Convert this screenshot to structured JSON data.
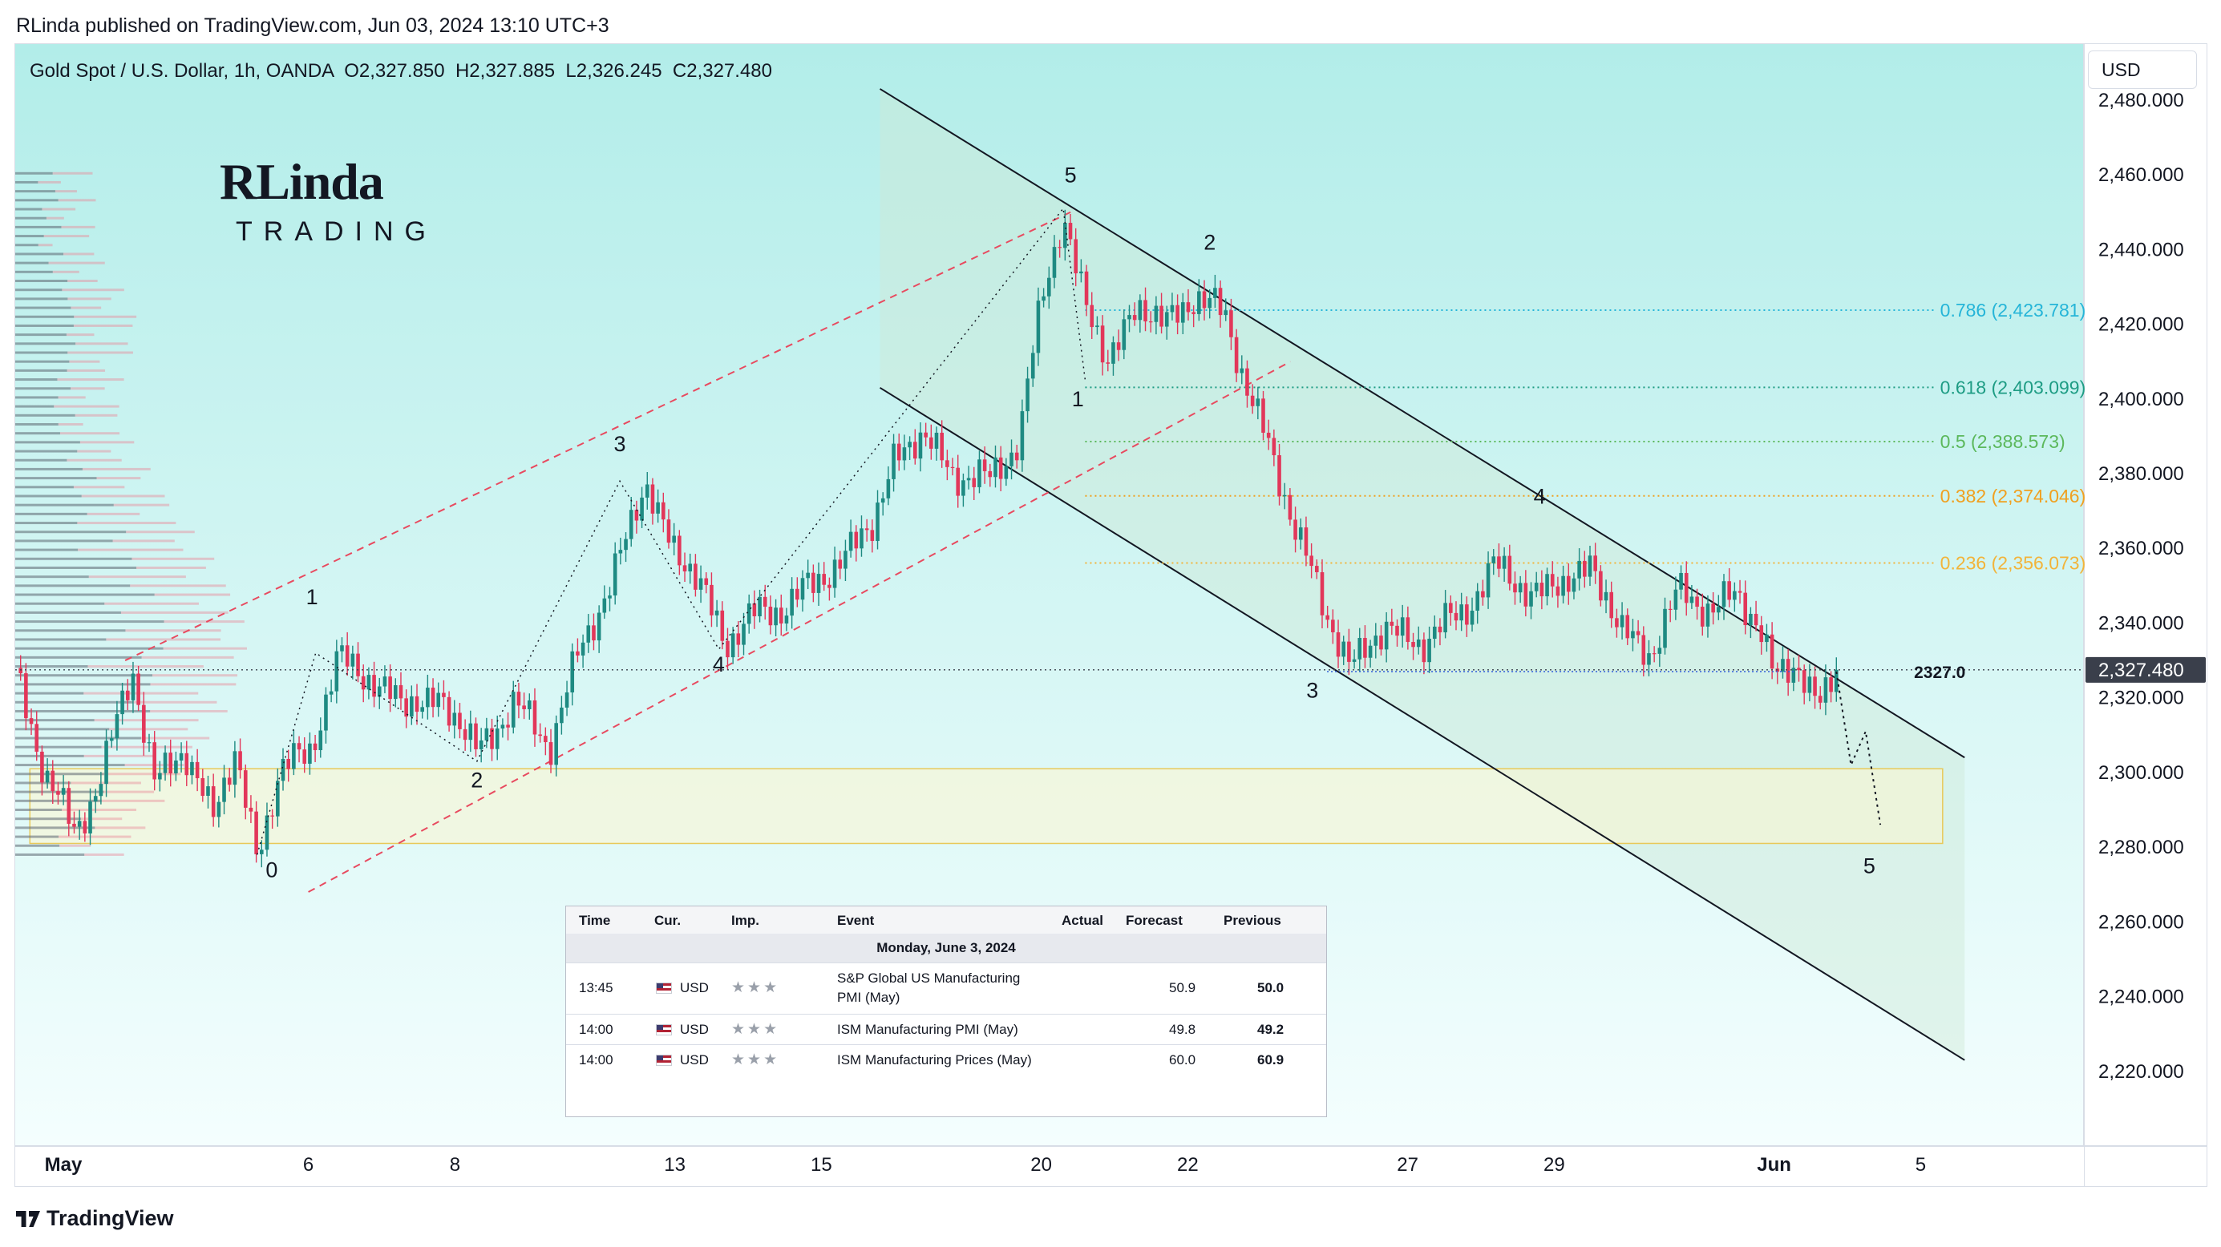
{
  "published_line": "RLinda published on TradingView.com, Jun 03, 2024 13:10 UTC+3",
  "header": {
    "symbol": "Gold Spot / U.S. Dollar, 1h, OANDA",
    "open": "O2,327.850",
    "high": "H2,327.885",
    "low": "L2,326.245",
    "close": "C2,327.480"
  },
  "currency": "USD",
  "logo": {
    "main": "RLinda",
    "sub": "TRADING"
  },
  "footer": "TradingView",
  "colors": {
    "bg_top": "#b2ede9",
    "bg_bottom": "#f4fefe",
    "up": "#1e8a82",
    "down": "#e2375a",
    "price_tag": "#3a3f4b",
    "fib_786": "#26b5d8",
    "fib_618": "#1e9c84",
    "fib_05": "#5cb85c",
    "fib_382": "#f0a020",
    "fib_236": "#f2b43a",
    "support_zone": "#e8c95a",
    "channel_red": "#e84a5f"
  },
  "chart_data": {
    "type": "candlestick",
    "timeframe": "1h",
    "yaxis": {
      "min": 2200,
      "max": 2495,
      "ticks": [
        "2,480.000",
        "2,460.000",
        "2,440.000",
        "2,420.000",
        "2,400.000",
        "2,380.000",
        "2,360.000",
        "2,340.000",
        "2,320.000",
        "2,300.000",
        "2,280.000",
        "2,260.000",
        "2,240.000",
        "2,220.000"
      ],
      "tick_values": [
        2480,
        2460,
        2440,
        2420,
        2400,
        2380,
        2360,
        2340,
        2320,
        2300,
        2280,
        2260,
        2240,
        2220
      ]
    },
    "xaxis": {
      "labels": [
        "May",
        "6",
        "8",
        "13",
        "15",
        "20",
        "22",
        "27",
        "29",
        "Jun",
        "5"
      ],
      "label_positions": [
        0,
        4,
        6,
        9,
        11,
        14,
        16,
        19,
        21,
        24,
        26
      ]
    },
    "last_price": "2,327.480",
    "last_price_value": 2327.48,
    "level_label": "2327.0",
    "level_value": 2327.0,
    "price_path": [
      [
        0.0,
        2328
      ],
      [
        0.4,
        2300
      ],
      [
        0.8,
        2284
      ],
      [
        1.2,
        2300
      ],
      [
        1.6,
        2328
      ],
      [
        1.9,
        2298
      ],
      [
        2.3,
        2305
      ],
      [
        2.7,
        2290
      ],
      [
        3.0,
        2304
      ],
      [
        3.3,
        2278
      ],
      [
        3.6,
        2300
      ],
      [
        4.0,
        2305
      ],
      [
        4.4,
        2330
      ],
      [
        4.8,
        2326
      ],
      [
        5.3,
        2318
      ],
      [
        5.8,
        2320
      ],
      [
        6.3,
        2306
      ],
      [
        6.8,
        2318
      ],
      [
        7.3,
        2308
      ],
      [
        7.7,
        2332
      ],
      [
        8.1,
        2350
      ],
      [
        8.6,
        2377
      ],
      [
        9.0,
        2360
      ],
      [
        9.4,
        2348
      ],
      [
        9.7,
        2335
      ],
      [
        10.1,
        2342
      ],
      [
        10.5,
        2345
      ],
      [
        10.9,
        2350
      ],
      [
        11.3,
        2358
      ],
      [
        11.7,
        2366
      ],
      [
        12.0,
        2385
      ],
      [
        12.4,
        2390
      ],
      [
        12.8,
        2380
      ],
      [
        13.3,
        2378
      ],
      [
        13.7,
        2390
      ],
      [
        14.0,
        2425
      ],
      [
        14.3,
        2450
      ],
      [
        14.6,
        2425
      ],
      [
        14.9,
        2410
      ],
      [
        15.3,
        2425
      ],
      [
        15.7,
        2420
      ],
      [
        16.1,
        2428
      ],
      [
        16.5,
        2422
      ],
      [
        16.8,
        2405
      ],
      [
        17.2,
        2380
      ],
      [
        17.6,
        2360
      ],
      [
        17.9,
        2340
      ],
      [
        18.2,
        2330
      ],
      [
        18.7,
        2338
      ],
      [
        19.2,
        2335
      ],
      [
        19.7,
        2342
      ],
      [
        20.2,
        2355
      ],
      [
        20.7,
        2348
      ],
      [
        21.1,
        2350
      ],
      [
        21.5,
        2356
      ],
      [
        21.9,
        2338
      ],
      [
        22.3,
        2332
      ],
      [
        22.7,
        2348
      ],
      [
        23.2,
        2344
      ],
      [
        23.5,
        2347
      ],
      [
        23.8,
        2340
      ],
      [
        24.0,
        2326
      ],
      [
        24.3,
        2328
      ],
      [
        24.6,
        2319
      ],
      [
        24.85,
        2327.48
      ]
    ],
    "projection": [
      [
        24.85,
        2327
      ],
      [
        25.05,
        2302
      ],
      [
        25.25,
        2311
      ],
      [
        25.45,
        2286
      ]
    ],
    "wave_labels": [
      {
        "text": "0",
        "t": 3.5,
        "price": 2272
      },
      {
        "text": "1",
        "t": 4.05,
        "price": 2345
      },
      {
        "text": "2",
        "t": 6.3,
        "price": 2296
      },
      {
        "text": "3",
        "t": 8.25,
        "price": 2386
      },
      {
        "text": "4",
        "t": 9.6,
        "price": 2327
      },
      {
        "text": "5",
        "t": 14.4,
        "price": 2458
      },
      {
        "text": "1",
        "t": 14.5,
        "price": 2398
      },
      {
        "text": "2",
        "t": 16.3,
        "price": 2440
      },
      {
        "text": "3",
        "t": 17.7,
        "price": 2320
      },
      {
        "text": "4",
        "t": 20.8,
        "price": 2372
      },
      {
        "text": "5",
        "t": 25.3,
        "price": 2273
      }
    ],
    "fib_levels": [
      {
        "label": "0.786 (2,423.781)",
        "ratio": 0.786,
        "price": 2423.781,
        "color_key": "fib_786"
      },
      {
        "label": "0.618 (2,403.099)",
        "ratio": 0.618,
        "price": 2403.099,
        "color_key": "fib_618"
      },
      {
        "label": "0.5 (2,388.573)",
        "ratio": 0.5,
        "price": 2388.573,
        "color_key": "fib_05"
      },
      {
        "label": "0.382 (2,374.046)",
        "ratio": 0.382,
        "price": 2374.046,
        "color_key": "fib_382"
      },
      {
        "label": "0.236 (2,356.073)",
        "ratio": 0.236,
        "price": 2356.073,
        "color_key": "fib_236"
      }
    ],
    "support_zone": {
      "price_low": 2281,
      "price_high": 2301
    },
    "channels": {
      "black_upper": [
        [
          11.8,
          2483
        ],
        [
          26.6,
          2304
        ]
      ],
      "black_lower": [
        [
          11.8,
          2403
        ],
        [
          26.6,
          2223
        ]
      ],
      "red_upper": [
        [
          1.5,
          2330
        ],
        [
          14.4,
          2450
        ]
      ],
      "red_lower": [
        [
          4.0,
          2268
        ],
        [
          17.4,
          2410
        ]
      ]
    }
  },
  "calendar": {
    "columns": [
      "Time",
      "Cur.",
      "Imp.",
      "Event",
      "Actual",
      "Forecast",
      "Previous"
    ],
    "date_row": "Monday, June 3, 2024",
    "rows": [
      {
        "time": "13:45",
        "cur": "USD",
        "event": "S&P Global US Manufacturing PMI (May)",
        "actual": "",
        "forecast": "50.9",
        "previous": "50.0"
      },
      {
        "time": "14:00",
        "cur": "USD",
        "event": "ISM Manufacturing PMI (May)",
        "actual": "",
        "forecast": "49.8",
        "previous": "49.2"
      },
      {
        "time": "14:00",
        "cur": "USD",
        "event": "ISM Manufacturing Prices (May)",
        "actual": "",
        "forecast": "60.0",
        "previous": "60.9"
      }
    ]
  }
}
